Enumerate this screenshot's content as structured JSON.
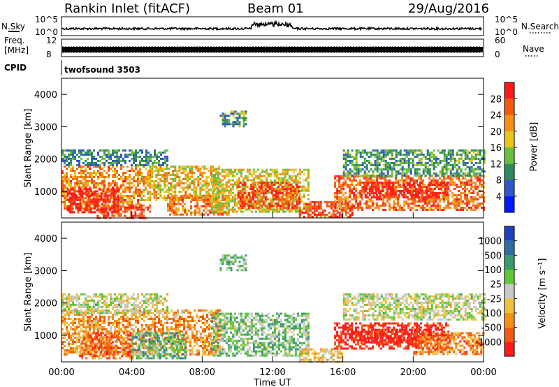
{
  "header": {
    "title": "Rankin Inlet (fitACF)",
    "beam": "Beam 01",
    "date": "29/Aug/2016"
  },
  "top_panels": {
    "nsky_label": "N.Sky",
    "nsky_ticks": [
      "10^5",
      "10^0"
    ],
    "nsearch_label": "N.Search",
    "nsearch_ticks": [
      "10^5",
      "10^0"
    ],
    "freq_label_1": "Freq.",
    "freq_label_2": "[MHz]",
    "freq_ticks": [
      "12",
      "8"
    ],
    "nave_label": "Nave",
    "nave_ticks": [
      "60",
      "0"
    ],
    "cpid_label": "CPID",
    "cpid_value": "twofsound 3503"
  },
  "chart_data": [
    {
      "type": "heatmap",
      "panel": "power",
      "ylabel": "Slant Range [km]",
      "y_ticks": [
        "1000",
        "2000",
        "3000",
        "4000"
      ],
      "ylim": [
        180,
        4500
      ],
      "colorbar_label": "Power [dB]",
      "colorbar_ticks": [
        "4",
        "8",
        "12",
        "16",
        "20",
        "24",
        "28"
      ],
      "colorbar_colors": [
        "#0019ff",
        "#2f55c8",
        "#2e8a5a",
        "#6bbf3c",
        "#e8c61a",
        "#f39018",
        "#f25a10",
        "#ff1a1a"
      ],
      "region_defs": [
        {
          "x0": 0.0,
          "x1": 4.5,
          "y0": 500,
          "y1": 1800,
          "level": 0.72
        },
        {
          "x0": 0.3,
          "x1": 3.2,
          "y0": 350,
          "y1": 1100,
          "level": 0.95
        },
        {
          "x0": 2.0,
          "x1": 5.0,
          "y0": 200,
          "y1": 600,
          "level": 0.85
        },
        {
          "x0": 4.5,
          "x1": 9.0,
          "y0": 700,
          "y1": 1800,
          "level": 0.6
        },
        {
          "x0": 6.0,
          "x1": 9.5,
          "y0": 300,
          "y1": 900,
          "level": 0.75
        },
        {
          "x0": 8.5,
          "x1": 14.0,
          "y0": 400,
          "y1": 1700,
          "level": 0.55
        },
        {
          "x0": 9.0,
          "x1": 10.5,
          "y0": 3000,
          "y1": 3500,
          "level": 0.35
        },
        {
          "x0": 10.0,
          "x1": 13.5,
          "y0": 500,
          "y1": 1300,
          "level": 0.85
        },
        {
          "x0": 13.5,
          "x1": 16.5,
          "y0": 200,
          "y1": 700,
          "level": 0.9
        },
        {
          "x0": 15.5,
          "x1": 24.0,
          "y0": 400,
          "y1": 1500,
          "level": 0.78
        },
        {
          "x0": 17.0,
          "x1": 22.0,
          "y0": 800,
          "y1": 1300,
          "level": 0.95
        },
        {
          "x0": 16.0,
          "x1": 24.0,
          "y0": 1500,
          "y1": 2300,
          "level": 0.35
        },
        {
          "x0": 0.0,
          "x1": 6.0,
          "y0": 1800,
          "y1": 2300,
          "level": 0.3
        }
      ]
    },
    {
      "type": "heatmap",
      "panel": "velocity",
      "ylabel": "Slant Range [km]",
      "y_ticks": [
        "1000",
        "2000",
        "3000",
        "4000"
      ],
      "ylim": [
        180,
        4500
      ],
      "xlabel": "Time UT",
      "x_ticks": [
        "00:00",
        "04:00",
        "08:00",
        "12:00",
        "16:00",
        "20:00",
        "00:00"
      ],
      "x_range_hours": [
        0,
        24
      ],
      "colorbar_label": "Velocity [m s⁻¹]",
      "colorbar_ticks": [
        "-1000",
        "-500",
        "-100",
        "-25",
        "25",
        "100",
        "500",
        "1000"
      ],
      "colorbar_colors": [
        "#ff1a1a",
        "#f25a10",
        "#f39018",
        "#f0c040",
        "#c8c8c8",
        "#62c832",
        "#3a9a6a",
        "#2f6ea0",
        "#2040c0"
      ],
      "region_defs": [
        {
          "x0": 0.0,
          "x1": 9.0,
          "y0": 400,
          "y1": 1800,
          "level": 0.3
        },
        {
          "x0": 1.0,
          "x1": 4.0,
          "y0": 300,
          "y1": 1100,
          "level": 0.2
        },
        {
          "x0": 4.0,
          "x1": 7.0,
          "y0": 300,
          "y1": 1100,
          "level": 0.65
        },
        {
          "x0": 8.5,
          "x1": 14.0,
          "y0": 400,
          "y1": 1700,
          "level": 0.6
        },
        {
          "x0": 9.0,
          "x1": 10.5,
          "y0": 3000,
          "y1": 3500,
          "level": 0.62
        },
        {
          "x0": 13.5,
          "x1": 16.0,
          "y0": 200,
          "y1": 600,
          "level": 0.42
        },
        {
          "x0": 15.5,
          "x1": 22.0,
          "y0": 600,
          "y1": 1400,
          "level": 0.05
        },
        {
          "x0": 17.0,
          "x1": 21.0,
          "y0": 800,
          "y1": 1200,
          "level": 0.0
        },
        {
          "x0": 20.0,
          "x1": 24.0,
          "y0": 400,
          "y1": 1100,
          "level": 0.25
        },
        {
          "x0": 16.0,
          "x1": 24.0,
          "y0": 1500,
          "y1": 2300,
          "level": 0.5
        },
        {
          "x0": 0.0,
          "x1": 6.0,
          "y0": 1700,
          "y1": 2300,
          "level": 0.5
        }
      ]
    }
  ]
}
